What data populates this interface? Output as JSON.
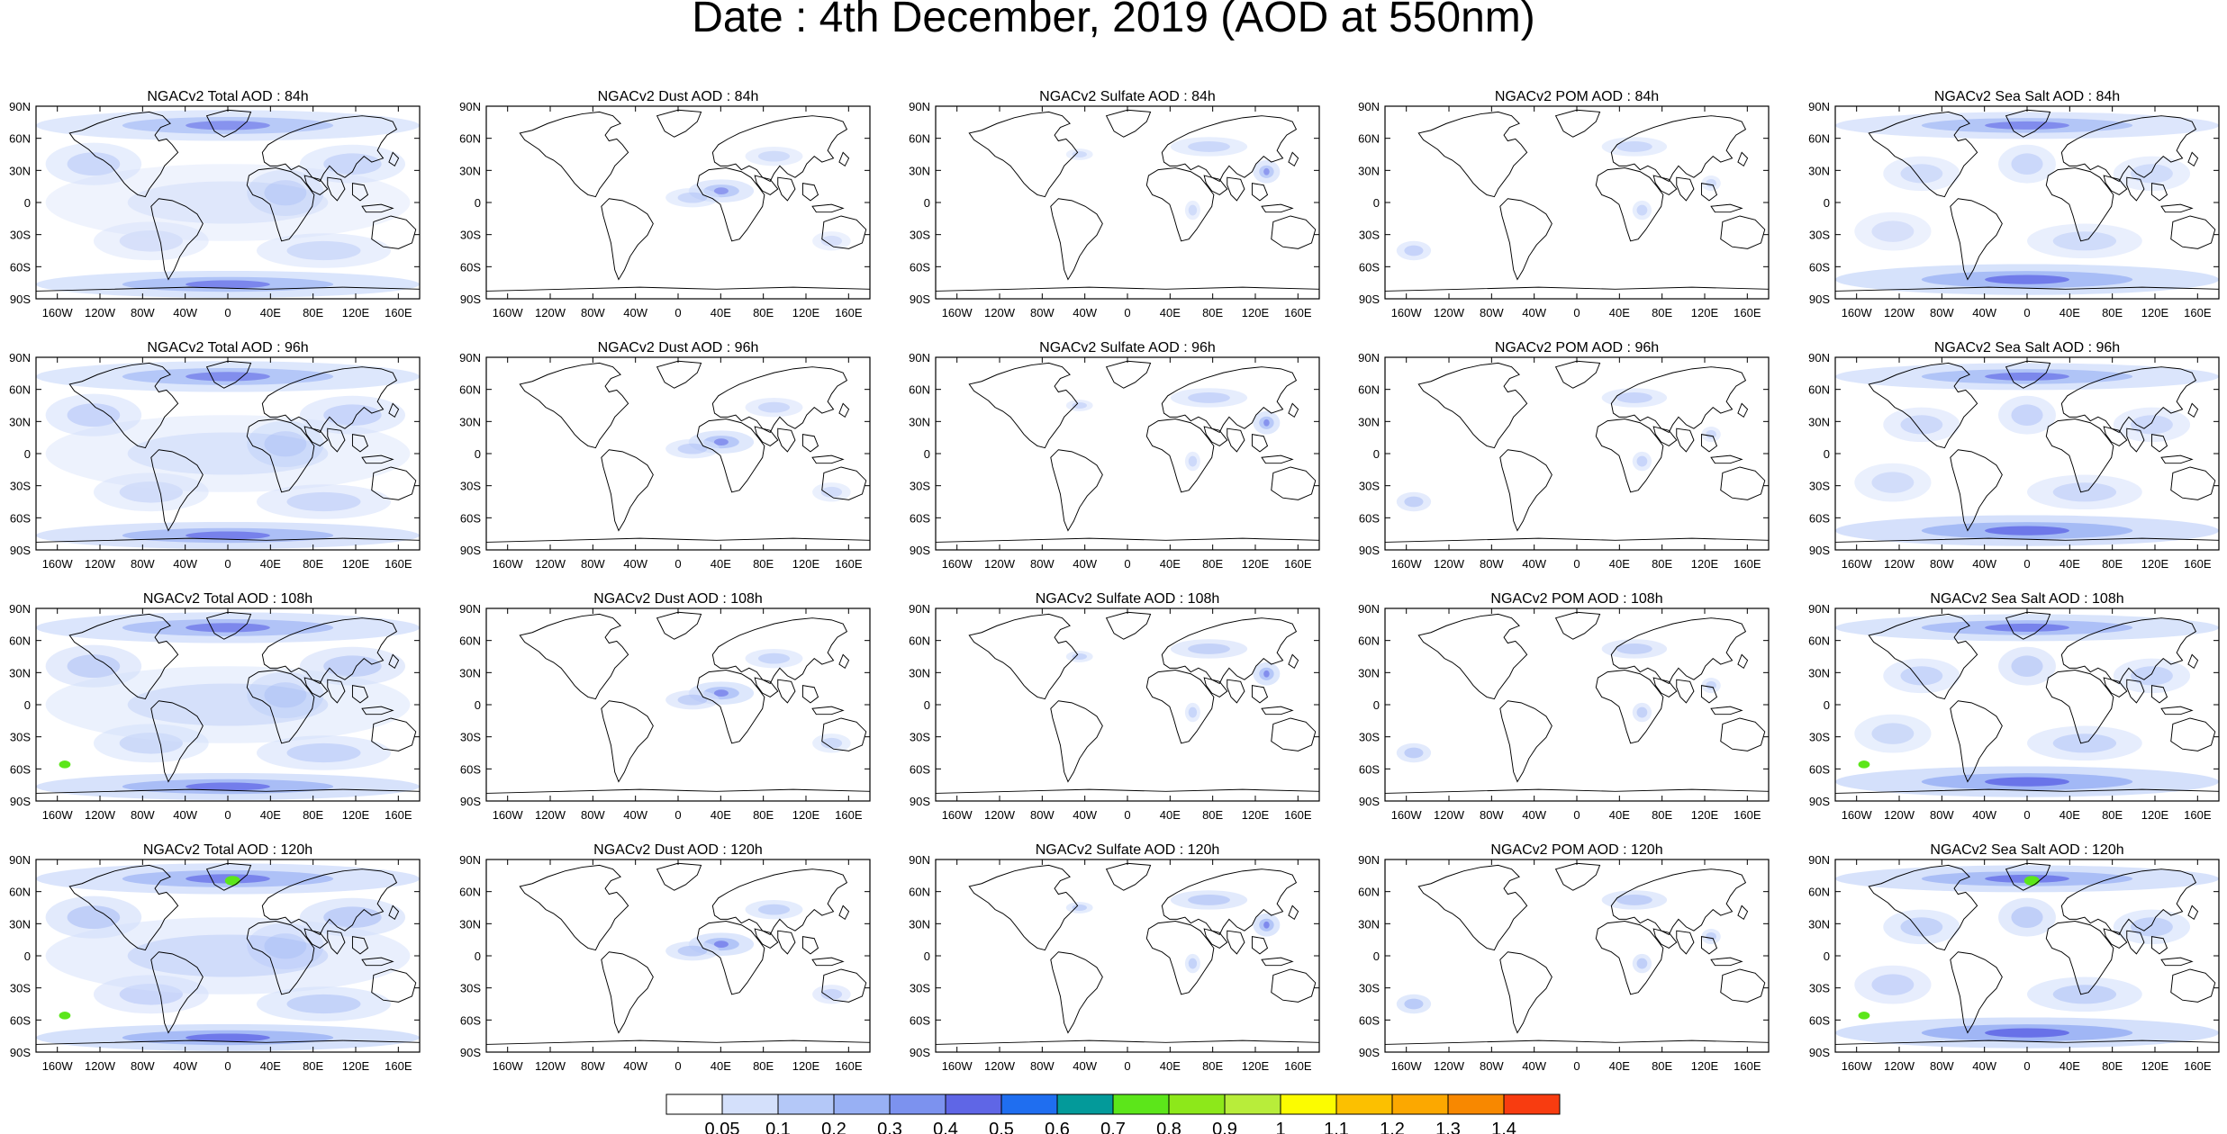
{
  "title": "Date : 4th December, 2019 (AOD at 550nm)",
  "panel_title_template": "NGACv2 {var} AOD : {hour}",
  "panel_rows": [
    [
      "NGACv2 Total AOD : 84h",
      "NGACv2 Dust AOD : 84h",
      "NGACv2 Sulfate AOD : 84h",
      "NGACv2 POM AOD : 84h",
      "NGACv2 Sea Salt AOD : 84h"
    ],
    [
      "NGACv2 Total AOD : 96h",
      "NGACv2 Dust AOD : 96h",
      "NGACv2 Sulfate AOD : 96h",
      "NGACv2 POM AOD : 96h",
      "NGACv2 Sea Salt AOD : 96h"
    ],
    [
      "NGACv2 Total AOD : 108h",
      "NGACv2 Dust AOD : 108h",
      "NGACv2 Sulfate AOD : 108h",
      "NGACv2 POM AOD : 108h",
      "NGACv2 Sea Salt AOD : 108h"
    ],
    [
      "NGACv2 Total AOD : 120h",
      "NGACv2 Dust AOD : 120h",
      "NGACv2 Sulfate AOD : 120h",
      "NGACv2 POM AOD : 120h",
      "NGACv2 Sea Salt  AOD : 120h"
    ]
  ],
  "variables": [
    "Total",
    "Dust",
    "Sulfate",
    "POM",
    "Sea Salt"
  ],
  "forecast_hours": [
    "84h",
    "96h",
    "108h",
    "120h"
  ],
  "lat_ticks": [
    "90N",
    "60N",
    "30N",
    "0",
    "30S",
    "60S",
    "90S"
  ],
  "lon_ticks": [
    "160W",
    "120W",
    "80W",
    "40W",
    "0",
    "40E",
    "80E",
    "120E",
    "160E"
  ],
  "colorbar": {
    "labels": [
      "0.05",
      "0.1",
      "0.2",
      "0.3",
      "0.4",
      "0.5",
      "0.6",
      "0.7",
      "0.8",
      "0.9",
      "1",
      "1.1",
      "1.2",
      "1.3",
      "1.4"
    ],
    "colors": [
      "#ffffff",
      "#d4e0fb",
      "#b4c8f8",
      "#98b0f4",
      "#7c92ef",
      "#5f66e6",
      "#1f6ef0",
      "#039a9a",
      "#5ce61a",
      "#8de81a",
      "#b8ed3a",
      "#fcfc00",
      "#fcc000",
      "#fca800",
      "#f88800",
      "#f83c10"
    ]
  },
  "palette": {
    "coast": "#000000",
    "aod_low": "#d4e0fb",
    "aod_mid": "#98b0f4",
    "aod_high": "#5f66e6",
    "plume_peak": "#5ce61a"
  }
}
